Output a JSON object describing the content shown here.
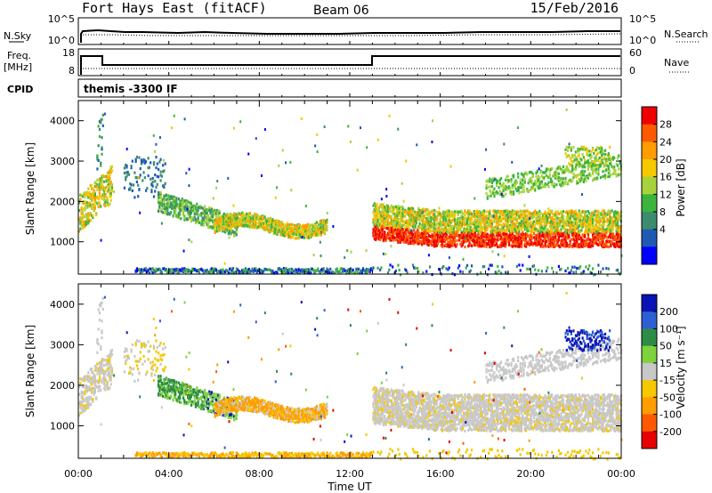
{
  "header": {
    "station": "Fort Hays East (fitACF)",
    "beam": "Beam 06",
    "date": "15/Feb/2016"
  },
  "noise_panel": {
    "left_label": "N.Sky",
    "left_ticks": [
      "10^5",
      "10^0"
    ],
    "right_label": "N.Search",
    "right_ticks": [
      "10^5",
      "10^0"
    ]
  },
  "freq_panel": {
    "left_label_1": "Freq.",
    "left_label_2": "[MHz]",
    "left_ticks": [
      "18",
      "8"
    ],
    "right_label": "Nave",
    "right_ticks": [
      "60",
      "0"
    ]
  },
  "cpid_panel": {
    "label": "CPID",
    "text": "themis -3300 IF"
  },
  "chart_data": [
    {
      "type": "heatmap",
      "name": "power",
      "ylabel": "Slant Range [km]",
      "y_ticks": [
        "1000",
        "2000",
        "3000",
        "4000"
      ],
      "ylim": [
        200,
        4500
      ],
      "xlim": [
        0,
        24
      ],
      "x_tick_labels": [
        "00:00",
        "04:00",
        "08:00",
        "12:00",
        "16:00",
        "20:00",
        "00:00"
      ],
      "x_tick_values": [
        0,
        4,
        8,
        12,
        16,
        20,
        24
      ],
      "xlabel": "Time UT",
      "colorbar": {
        "label": "Power [dB]",
        "ticks": [
          "28",
          "24",
          "20",
          "16",
          "12",
          "8",
          "4"
        ],
        "colors": [
          "#ee0000",
          "#ff5a00",
          "#ff9c00",
          "#f5c800",
          "#a8d23c",
          "#3cb43c",
          "#3c8c6e",
          "#1e5ab4",
          "#0000ff"
        ]
      }
    },
    {
      "type": "heatmap",
      "name": "velocity",
      "ylabel": "Slant Range [km]",
      "y_ticks": [
        "1000",
        "2000",
        "3000",
        "4000"
      ],
      "ylim": [
        200,
        4500
      ],
      "xlim": [
        0,
        24
      ],
      "colorbar": {
        "label": "Velocity [m s⁻¹]",
        "ticks": [
          "200",
          "100",
          "50",
          "15",
          "-15",
          "-50",
          "-100",
          "-200"
        ],
        "colors": [
          "#0a14b4",
          "#2d5fd2",
          "#2d8c46",
          "#7ed23c",
          "#c8c8c8",
          "#f5c800",
          "#ff9c00",
          "#ff5a00",
          "#e60000"
        ]
      }
    }
  ]
}
